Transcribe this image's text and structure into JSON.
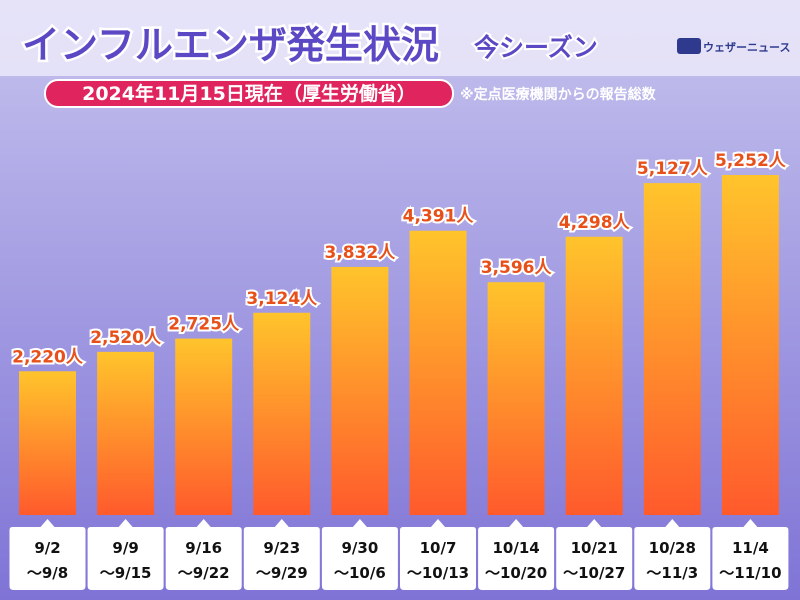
{
  "chart_data": {
    "type": "bar",
    "title": "インフルエンザ発生状況",
    "title_suffix": "今シーズン",
    "subtitle": "2024年11月15日現在（厚生労働省）",
    "note": "※定点医療機関からの報告総数",
    "source_logo": "ウェザーニュース",
    "categories": [
      [
        "9/2",
        "〜9/8"
      ],
      [
        "9/9",
        "〜9/15"
      ],
      [
        "9/16",
        "〜9/22"
      ],
      [
        "9/23",
        "〜9/29"
      ],
      [
        "9/30",
        "〜10/6"
      ],
      [
        "10/7",
        "〜10/13"
      ],
      [
        "10/14",
        "〜10/20"
      ],
      [
        "10/21",
        "〜10/27"
      ],
      [
        "10/28",
        "〜11/3"
      ],
      [
        "11/4",
        "〜11/10"
      ]
    ],
    "values": [
      2220,
      2520,
      2725,
      3124,
      3832,
      4391,
      3596,
      4298,
      5127,
      5252
    ],
    "value_labels": [
      "2,220人",
      "2,520人",
      "2,725人",
      "3,124人",
      "3,832人",
      "4,391人",
      "3,596人",
      "4,298人",
      "5,127人",
      "5,252人"
    ],
    "color": [
      "#ffc42c",
      "#ff5a2c"
    ]
  }
}
